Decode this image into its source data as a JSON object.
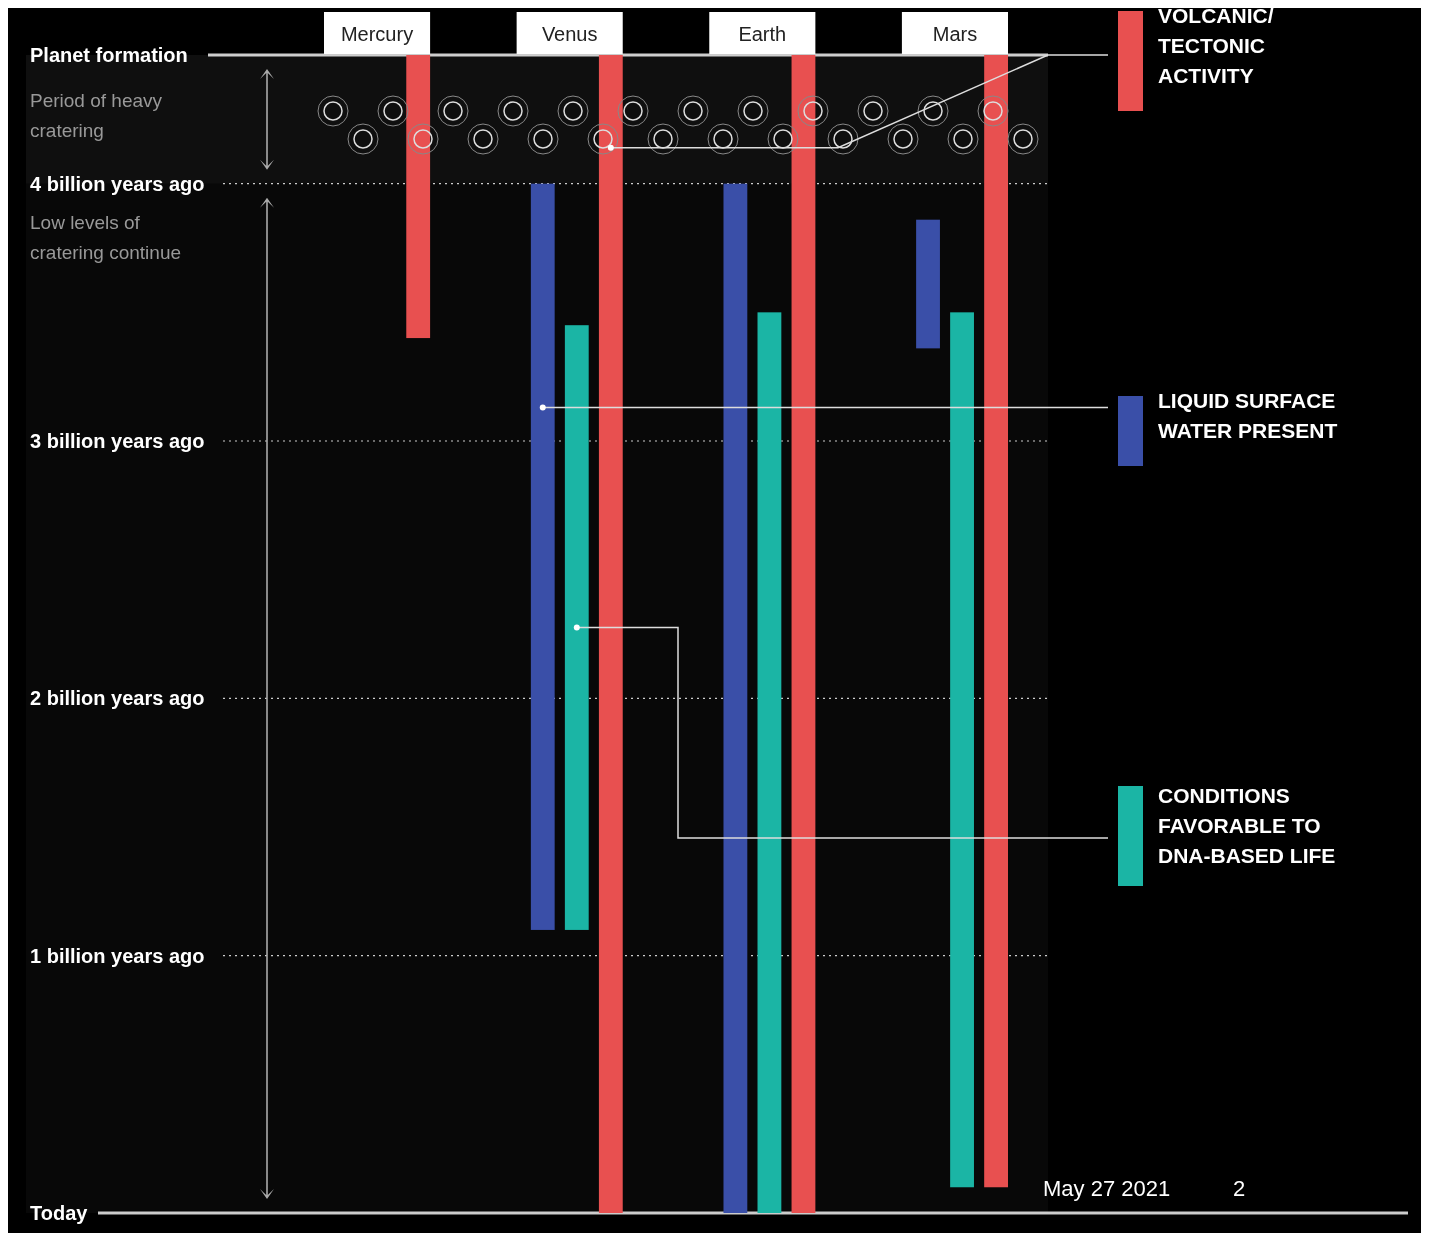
{
  "chart_data": {
    "type": "bar",
    "categories": [
      "Mercury",
      "Venus",
      "Earth",
      "Mars"
    ],
    "series": [
      {
        "name": "LIQUID SURFACE WATER PRESENT",
        "color": "#3a4fa8",
        "values": [
          null,
          2.9,
          4,
          0.5
        ],
        "base": [
          null,
          1.1,
          0,
          3.36
        ]
      },
      {
        "name": "CONDITIONS FAVORABLE TO DNA-BASED LIFE",
        "color": "#1bb5a5",
        "values": [
          null,
          2.35,
          3.5,
          3.4
        ],
        "base": [
          null,
          1.1,
          0,
          0.1
        ]
      },
      {
        "name": "VOLCANIC/ TECTONIC ACTIVITY",
        "color": "#e85050",
        "values": [
          1.1,
          4.5,
          4.5,
          4.4
        ],
        "base": [
          3.4,
          0,
          0,
          0.1
        ]
      }
    ],
    "ylim": [
      0,
      4.5
    ],
    "yticks": [
      {
        "value": 4.5,
        "label": "Planet formation"
      },
      {
        "value": 4,
        "label": "4 billion years ago"
      },
      {
        "value": 3,
        "label": "3 billion years ago"
      },
      {
        "value": 2,
        "label": "2 billion years ago"
      },
      {
        "value": 1,
        "label": "1 billion years ago"
      },
      {
        "value": 0,
        "label": "Today"
      }
    ],
    "grid": "y",
    "legend": "right",
    "bands": [
      {
        "axis": "y",
        "from": 4.5,
        "to": 4,
        "label": "Period of heavy cratering"
      },
      {
        "axis": "y",
        "from": 4,
        "to": 0,
        "label": "Low levels of cratering continue"
      }
    ],
    "annotations": [
      "May 27 2021",
      "2"
    ]
  }
}
